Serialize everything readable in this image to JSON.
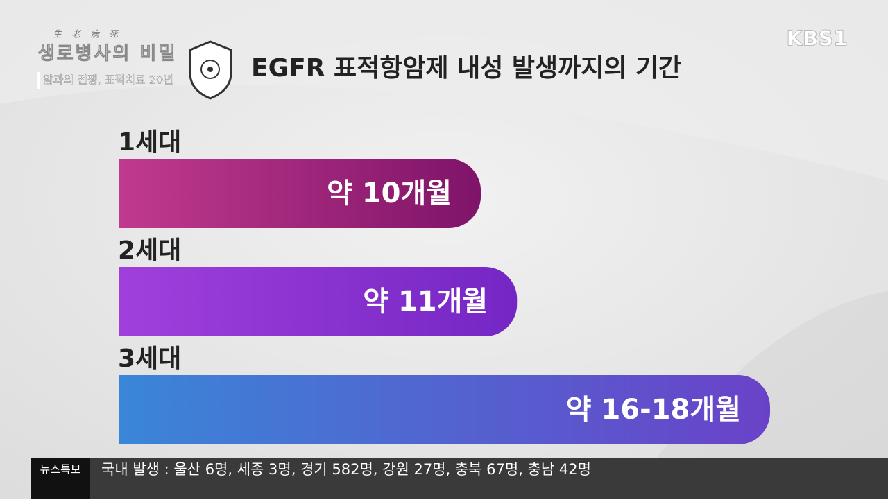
{
  "broadcast": {
    "channel": "KBS1",
    "program_hanja": "生老病死",
    "program": "생로병사의 비밀",
    "episode": "암과의 전쟁, 표적치료 20년"
  },
  "chart_data": {
    "type": "bar",
    "orientation": "horizontal",
    "title": "EGFR 표적항암제 내성 발생까지의 기간",
    "categories": [
      "1세대",
      "2세대",
      "3세대"
    ],
    "values": [
      10,
      11,
      18
    ],
    "value_labels": [
      "약 10개월",
      "약 11개월",
      "약 16-18개월"
    ],
    "colors": [
      [
        "#c03a8f",
        "#7f1468"
      ],
      [
        "#a040dc",
        "#7426c4"
      ],
      [
        "#3a86d8",
        "#6a42c8"
      ]
    ]
  },
  "ticker": {
    "label": "뉴스특보",
    "text": "국내 발생 : 울산 6명, 세종 3명, 경기 582명, 강원 27명, 충북 67명, 충남 42명"
  }
}
